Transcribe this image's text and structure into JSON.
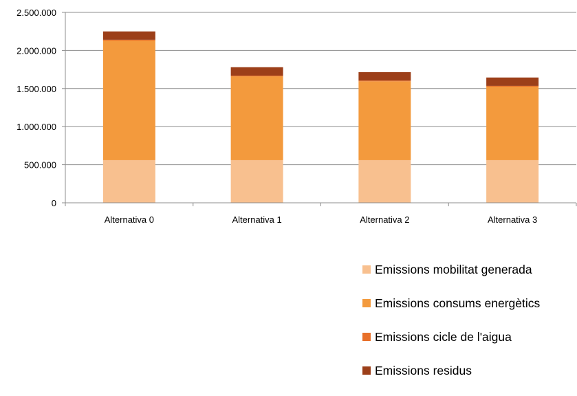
{
  "chart_data": {
    "type": "bar",
    "stacked": true,
    "categories": [
      "Alternativa 0",
      "Alternativa 1",
      "Alternativa 2",
      "Alternativa 3"
    ],
    "series": [
      {
        "name": "Emissions mobilitat generada",
        "color": "#F8C08F",
        "values": [
          560000,
          560000,
          560000,
          560000
        ]
      },
      {
        "name": "Emissions consums energètics",
        "color": "#F39A3D",
        "values": [
          1570000,
          1100000,
          1035000,
          965000
        ]
      },
      {
        "name": "Emissions cicle de l'aigua",
        "color": "#E8702A",
        "values": [
          10000,
          10000,
          10000,
          10000
        ]
      },
      {
        "name": "Emissions residus",
        "color": "#9C3F19",
        "values": [
          110000,
          110000,
          110000,
          110000
        ]
      }
    ],
    "y_ticks": [
      "0",
      "500.000",
      "1.000.000",
      "1.500.000",
      "2.000.000",
      "2.500.000"
    ],
    "ylim": [
      0,
      2500000
    ],
    "grid": true,
    "legend_position": "bottom-right"
  }
}
